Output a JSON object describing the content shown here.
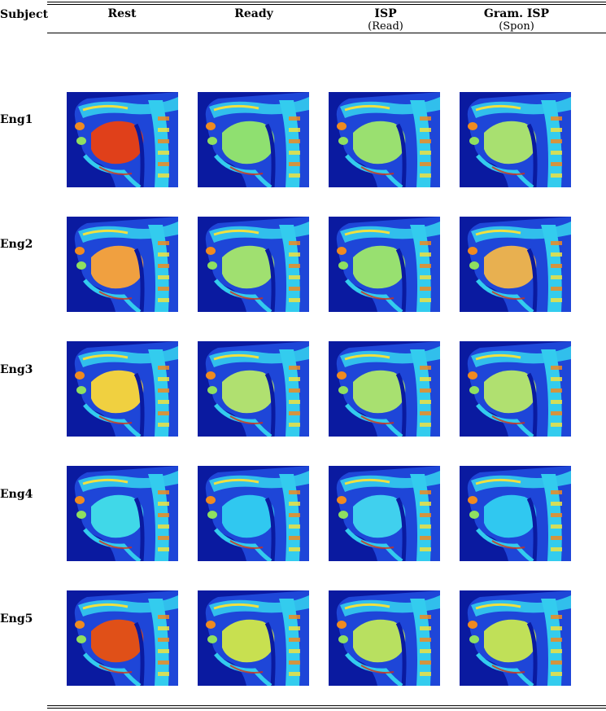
{
  "table": {
    "subject_header": "Subject",
    "columns": [
      {
        "title": "Rest",
        "sub": ""
      },
      {
        "title": "Ready",
        "sub": ""
      },
      {
        "title": "ISP",
        "sub": "(Read)"
      },
      {
        "title": "Gram. ISP",
        "sub": "(Spon)"
      }
    ],
    "rows": [
      "Eng1",
      "Eng2",
      "Eng3",
      "Eng4",
      "Eng5"
    ]
  },
  "image_description": "Grid of sagittal vocal-tract MRI images rendered with a jet colormap (blue background, cyan/green/yellow/red tissue intensities)",
  "colors": {
    "dark_blue": "#0a1aa0",
    "blue": "#1e46d8",
    "cyan": "#33ccee",
    "green": "#8fe060",
    "yellow": "#f0e040",
    "orange": "#f08a20",
    "red": "#d83010"
  },
  "tongue_colors": [
    [
      "#e0401a",
      "#8fe070",
      "#9ae070",
      "#a8e070"
    ],
    [
      "#f0a040",
      "#a0e070",
      "#98e070",
      "#e8b050"
    ],
    [
      "#f0d040",
      "#b0e070",
      "#a8e070",
      "#b0e070"
    ],
    [
      "#40d8e8",
      "#30c8f0",
      "#40d0ee",
      "#30c8f0"
    ],
    [
      "#e05018",
      "#c8e050",
      "#b8e060",
      "#c0e058"
    ]
  ]
}
